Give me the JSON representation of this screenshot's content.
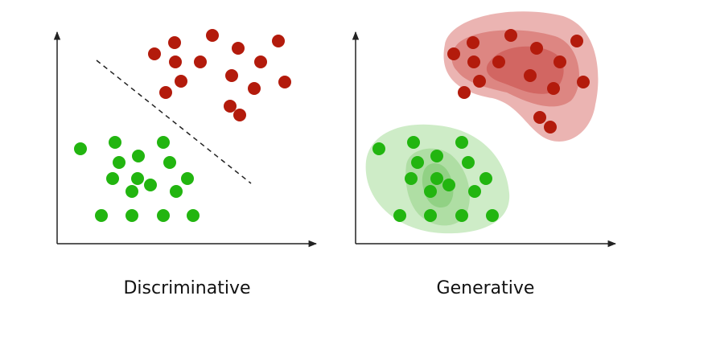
{
  "panels": [
    {
      "caption": "Discriminative"
    },
    {
      "caption": "Generative"
    }
  ],
  "colors": {
    "red": "#b31b0c",
    "green": "#22b510",
    "red_blob": "#e8a7a4",
    "green_blob": "#c9eac1",
    "axis": "#222222"
  }
}
